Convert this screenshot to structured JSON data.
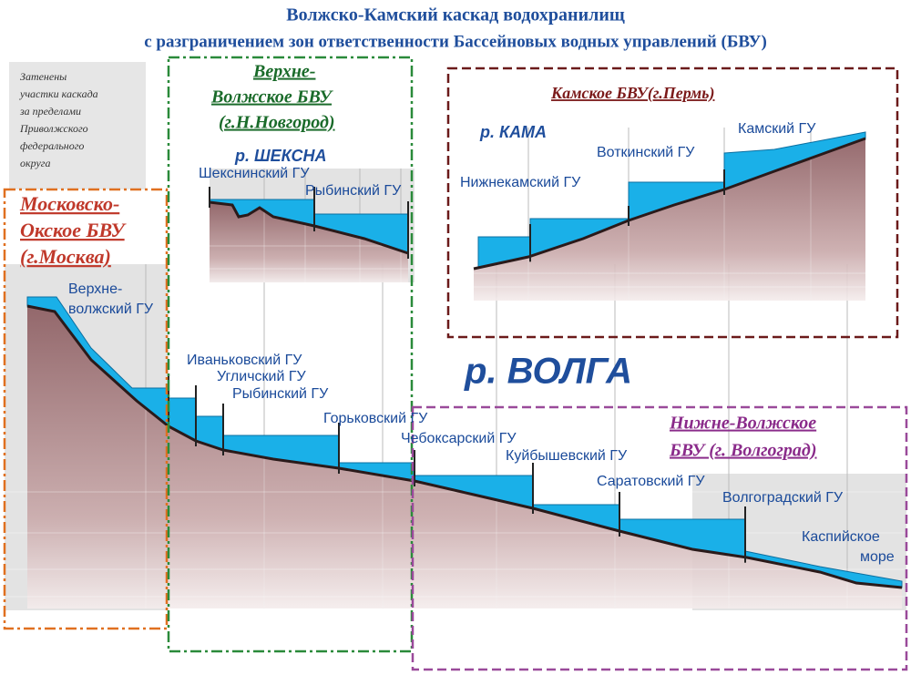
{
  "title": "Волжско-Камский каскад водохранилищ",
  "subtitle": "с разграничением зон ответственности Бассейновых водных управлений (БВУ)",
  "note": {
    "lines": [
      "Затенены",
      "участки каскада",
      "за пределами",
      "Приволжского",
      "федерального",
      "округа"
    ]
  },
  "zones": [
    {
      "lines": [
        "Московско-",
        "Окское БВУ",
        "(г.Москва)"
      ]
    },
    {
      "lines": [
        "Верхне-",
        "Волжское БВУ",
        "(г.Н.Новгород)"
      ]
    },
    {
      "lines": [
        "Камское БВУ(г.Пермь)"
      ]
    },
    {
      "lines": [
        "Нижне-Волжское",
        "БВУ (г. Волгоград)"
      ]
    }
  ],
  "rivers": {
    "volga": "р. ВОЛГА",
    "kama": "р. КАМА",
    "sheksna": "р. ШЕКСНА"
  },
  "volga_dams": [
    {
      "lines": [
        "Верхне-",
        "волжский ГУ"
      ]
    },
    {
      "lines": [
        "Иваньковский ГУ"
      ]
    },
    {
      "lines": [
        "Угличский ГУ"
      ]
    },
    {
      "lines": [
        "Рыбинский ГУ"
      ]
    },
    {
      "lines": [
        "Горьковский ГУ"
      ]
    },
    {
      "lines": [
        "Чебоксарский ГУ"
      ]
    },
    {
      "lines": [
        "Куйбышевский ГУ"
      ]
    },
    {
      "lines": [
        "Саратовский ГУ"
      ]
    },
    {
      "lines": [
        "Волгоградский ГУ"
      ]
    },
    {
      "lines": [
        "Каспийское",
        "море"
      ]
    }
  ],
  "sheksna_dams": [
    {
      "lines": [
        "Шекснинский ГУ"
      ]
    },
    {
      "lines": [
        "Рыбинский ГУ"
      ]
    }
  ],
  "kama_dams": [
    {
      "lines": [
        "Нижнекамский ГУ"
      ]
    },
    {
      "lines": [
        "Воткинский ГУ"
      ]
    },
    {
      "lines": [
        "Камский ГУ"
      ]
    }
  ]
}
